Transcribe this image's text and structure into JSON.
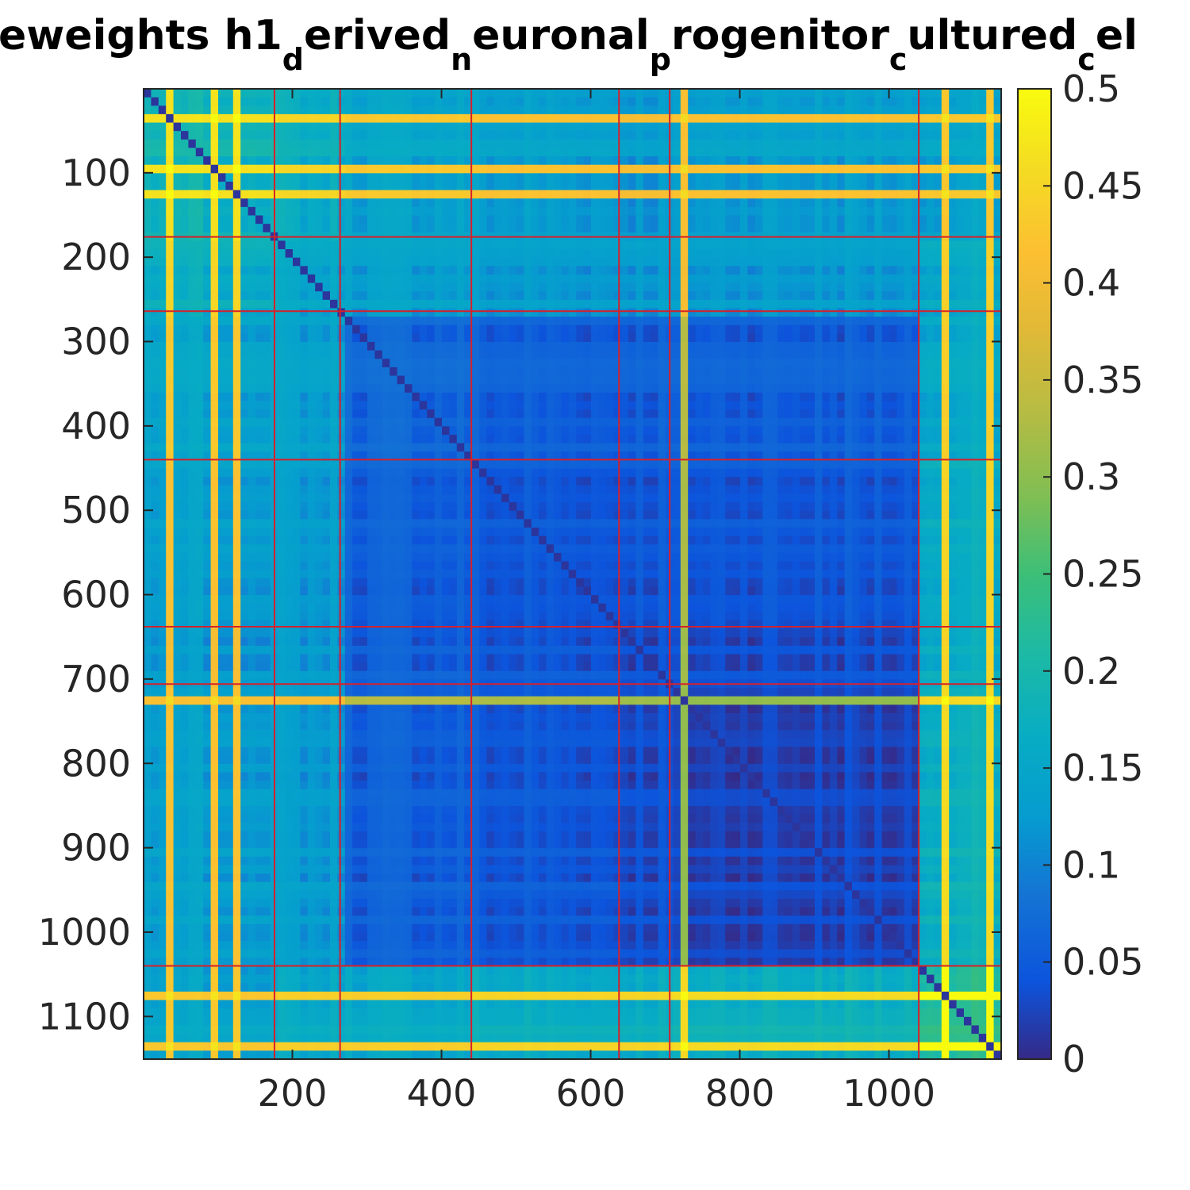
{
  "chart_data": {
    "type": "heatmap",
    "title_segments": [
      {
        "text": "eweights h1",
        "sub": false
      },
      {
        "text": "d",
        "sub": true
      },
      {
        "text": "erived",
        "sub": false
      },
      {
        "text": "n",
        "sub": true
      },
      {
        "text": "euronal",
        "sub": false
      },
      {
        "text": "p",
        "sub": true
      },
      {
        "text": "rogenitor",
        "sub": false
      },
      {
        "text": "c",
        "sub": true
      },
      {
        "text": "ultured",
        "sub": false
      },
      {
        "text": "c",
        "sub": true
      },
      {
        "text": "el",
        "sub": false
      }
    ],
    "matrix_size": 1150,
    "xlim": [
      1,
      1150
    ],
    "ylim": [
      1,
      1150
    ],
    "y_reversed": true,
    "x_ticks": [
      200,
      400,
      600,
      800,
      1000
    ],
    "x_tick_labels": [
      "200",
      "400",
      "600",
      "800",
      "1000"
    ],
    "y_ticks": [
      100,
      200,
      300,
      400,
      500,
      600,
      700,
      800,
      900,
      1000,
      1100
    ],
    "y_tick_labels": [
      "100",
      "200",
      "300",
      "400",
      "500",
      "600",
      "700",
      "800",
      "900",
      "1000",
      "1100"
    ],
    "color_range": [
      0,
      0.5
    ],
    "colormap": "parula",
    "colorbar_ticks": [
      0,
      0.05,
      0.1,
      0.15,
      0.2,
      0.25,
      0.3,
      0.35,
      0.4,
      0.45,
      0.5
    ],
    "colorbar_tick_labels": [
      "0",
      "0.05",
      "0.1",
      "0.15",
      "0.2",
      "0.25",
      "0.3",
      "0.35",
      "0.4",
      "0.45",
      "0.5"
    ],
    "cluster_boundaries": [
      176,
      264,
      440,
      638,
      706,
      1040
    ],
    "boundary_color": "#d6202a",
    "block_values": [
      [
        0.18,
        0.16,
        0.14,
        0.13,
        0.12,
        0.13,
        0.14
      ],
      [
        0.16,
        0.14,
        0.13,
        0.12,
        0.12,
        0.12,
        0.15
      ],
      [
        0.14,
        0.13,
        0.06,
        0.05,
        0.05,
        0.05,
        0.15
      ],
      [
        0.13,
        0.12,
        0.05,
        0.04,
        0.04,
        0.04,
        0.16
      ],
      [
        0.12,
        0.12,
        0.05,
        0.04,
        0.03,
        0.03,
        0.16
      ],
      [
        0.13,
        0.12,
        0.05,
        0.04,
        0.03,
        0.02,
        0.17
      ],
      [
        0.14,
        0.15,
        0.15,
        0.16,
        0.16,
        0.17,
        0.22
      ]
    ],
    "colors": {
      "low": "#352a87",
      "high": "#f9fb0e",
      "axis": "#262626"
    }
  }
}
